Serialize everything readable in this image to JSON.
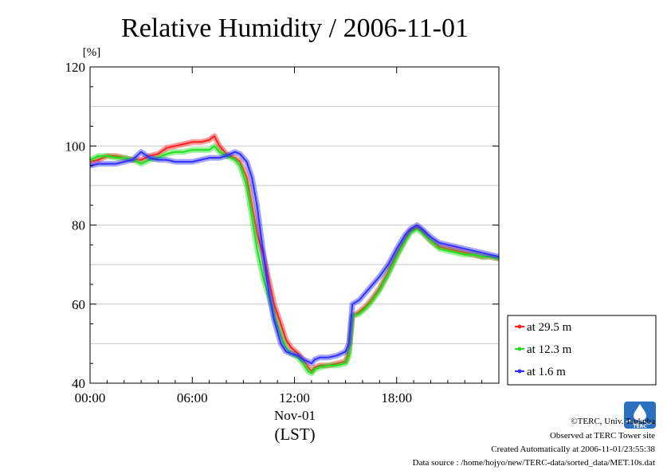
{
  "chart_data": {
    "type": "line",
    "title": "Relative Humidity / 2006-11-01",
    "ylabel": "[%]",
    "xlabel_date": "Nov-01",
    "xlabel_tz": "(LST)",
    "ylim": [
      40,
      120
    ],
    "xlim": [
      0,
      24
    ],
    "yticks": [
      "40",
      "60",
      "80",
      "100",
      "120"
    ],
    "xticks": [
      "00:00",
      "06:00",
      "12:00",
      "18:00"
    ],
    "grid": true,
    "legend_position": "right",
    "series": [
      {
        "name": "at 29.5 m",
        "color": "#ff2020",
        "x": [
          0,
          0.5,
          1,
          1.5,
          2,
          2.5,
          3,
          3.5,
          4,
          4.5,
          5,
          5.5,
          6,
          6.5,
          7,
          7.3,
          7.6,
          8,
          8.5,
          8.8,
          9.2,
          9.5,
          9.8,
          10.2,
          10.5,
          10.8,
          11.2,
          11.5,
          11.8,
          12.2,
          12.5,
          12.8,
          13,
          13.2,
          13.5,
          14,
          14.5,
          15,
          15.2,
          15.4,
          15.8,
          16.2,
          16.5,
          17,
          17.5,
          18,
          18.5,
          18.8,
          19.2,
          19.5,
          20,
          20.5,
          21,
          21.5,
          22,
          22.5,
          23,
          23.5,
          24
        ],
        "values": [
          96,
          96.5,
          97.5,
          97.5,
          97,
          96.5,
          96.5,
          97.5,
          98,
          99.5,
          100,
          100.5,
          101,
          101,
          101.5,
          102.5,
          100,
          98,
          97,
          96,
          92,
          85,
          78,
          72,
          66,
          60,
          55,
          51,
          49,
          47.5,
          46,
          44,
          43,
          44,
          44.5,
          44.5,
          45,
          45.5,
          48,
          57,
          58,
          59.5,
          61,
          64,
          68,
          72.5,
          76.5,
          78.5,
          79.5,
          78.5,
          76,
          74.5,
          74,
          73.5,
          73,
          72.5,
          72,
          72,
          71.5
        ]
      },
      {
        "name": "at 12.3 m",
        "color": "#20e020",
        "x": [
          0,
          0.5,
          1,
          1.5,
          2,
          2.5,
          3,
          3.5,
          4,
          4.5,
          5,
          5.5,
          6,
          6.5,
          7,
          7.3,
          7.6,
          8,
          8.5,
          8.8,
          9.2,
          9.5,
          9.8,
          10.2,
          10.5,
          10.8,
          11.2,
          11.5,
          11.8,
          12.2,
          12.5,
          12.8,
          13,
          13.2,
          13.5,
          14,
          14.5,
          15,
          15.2,
          15.4,
          15.8,
          16.2,
          16.5,
          17,
          17.5,
          18,
          18.5,
          18.8,
          19.2,
          19.5,
          20,
          20.5,
          21,
          21.5,
          22,
          22.5,
          23,
          23.5,
          24
        ],
        "values": [
          96.5,
          97.5,
          97.5,
          97,
          97,
          96.5,
          95.5,
          96.5,
          97,
          98,
          98.5,
          98.5,
          99,
          99,
          99,
          100,
          98.5,
          97.5,
          96.5,
          95,
          90,
          82,
          74,
          66,
          62,
          57,
          52,
          49,
          47.5,
          46.5,
          45,
          43,
          42.5,
          43.5,
          44,
          44.5,
          44.5,
          45,
          47,
          57,
          57.5,
          59,
          60.5,
          63.5,
          67.5,
          72,
          76,
          78,
          79,
          78,
          76,
          74,
          73.5,
          73,
          72.5,
          72.5,
          72,
          72,
          71.5
        ]
      },
      {
        "name": "at 1.6 m",
        "color": "#3030ff",
        "x": [
          0,
          0.5,
          1,
          1.5,
          2,
          2.5,
          3,
          3.5,
          4,
          4.5,
          5,
          5.5,
          6,
          6.5,
          7,
          7.3,
          7.6,
          8,
          8.5,
          8.8,
          9.2,
          9.5,
          9.8,
          10.2,
          10.5,
          10.8,
          11.2,
          11.5,
          11.8,
          12.2,
          12.5,
          12.8,
          13,
          13.2,
          13.5,
          14,
          14.5,
          15,
          15.2,
          15.4,
          15.8,
          16.2,
          16.5,
          17,
          17.5,
          18,
          18.5,
          18.8,
          19.2,
          19.5,
          20,
          20.5,
          21,
          21.5,
          22,
          22.5,
          23,
          23.5,
          24
        ],
        "values": [
          95,
          95.5,
          95.5,
          95.5,
          96,
          96.5,
          98.5,
          97,
          96.5,
          96.5,
          96,
          96,
          96,
          96.5,
          97,
          97,
          97,
          97.5,
          98.5,
          98,
          96,
          92,
          85,
          72,
          63,
          56,
          50,
          48,
          47.5,
          47,
          46,
          45.5,
          45,
          46,
          46.5,
          46.5,
          47,
          48,
          50,
          60,
          61,
          63,
          64.5,
          67,
          70,
          74,
          77.5,
          79,
          80,
          79,
          77,
          75.5,
          75,
          74.5,
          74,
          73.5,
          73,
          72.5,
          72
        ]
      }
    ]
  },
  "legend": {
    "items": [
      "at 29.5 m",
      "at 12.3 m",
      "at 1.6 m"
    ]
  },
  "credits": {
    "copyright": "©TERC, Univ. Tsukuba",
    "site": "Observed at TERC Tower site",
    "created": "Created Automatically at 2006-11-01/23:55:38",
    "source": "Data source : /home/hojyo/new/TERC-data/sorted_data/MET.10s.dat",
    "logo_text": "TERC"
  }
}
